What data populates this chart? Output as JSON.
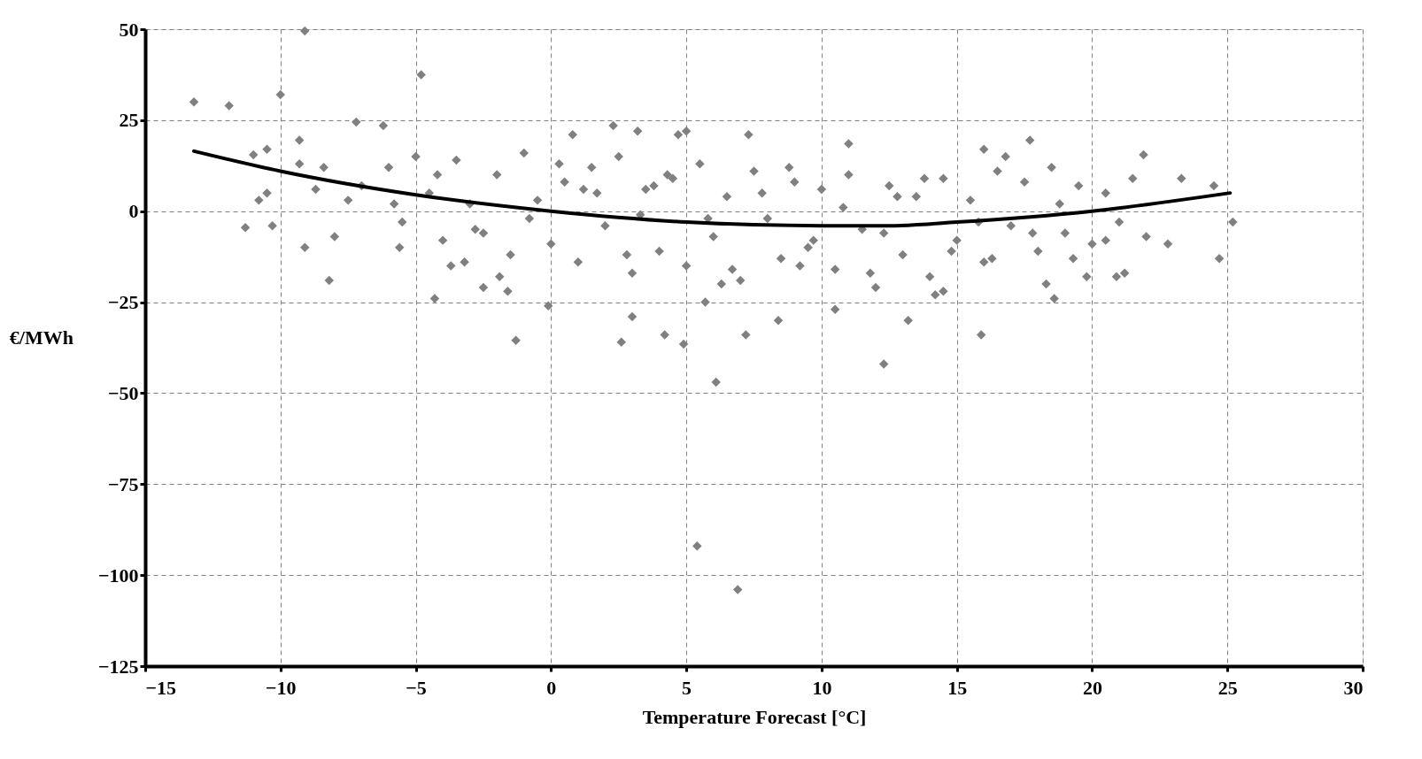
{
  "chart_data": {
    "type": "scatter",
    "xlabel": "Temperature  Forecast [°C]",
    "ylabel": "€/MWh",
    "xlim": [
      -15,
      30
    ],
    "ylim": [
      -125,
      50
    ],
    "xticks": [
      -15,
      -10,
      -5,
      0,
      5,
      10,
      15,
      20,
      25,
      30
    ],
    "yticks": [
      -125,
      -100,
      -75,
      -50,
      -25,
      0,
      25,
      50
    ],
    "grid": true,
    "series": [
      {
        "marker": "diamond",
        "color": "#808080",
        "x": [
          -13.2,
          -11.9,
          -10,
          -9.1,
          -9.3,
          -4.8,
          -7.2,
          -6.2,
          -11.3,
          -10.3,
          -9.1,
          -8.2,
          -10.8,
          -10.5,
          -11,
          -10.5,
          -9.3,
          -8.7,
          -8.4,
          -8,
          -7.5,
          -7,
          -4.3,
          -1.3,
          -0.1,
          0.8,
          2.3,
          3.2,
          4.7,
          5,
          5.4,
          6.9,
          6.1,
          7.3,
          12.3,
          11,
          15.9,
          17.7,
          21.9,
          24.7,
          25.2,
          24.5,
          23.3,
          22.8,
          3,
          4.2,
          4.9,
          7.2,
          8.4,
          10.5,
          13.2,
          5.7,
          2.6,
          -2.5,
          -1.9,
          -3.7,
          -5.6,
          -1.6,
          18.6,
          19.8,
          20.9,
          16,
          14.5,
          -6,
          -5.5,
          -5,
          -4.5,
          -4,
          -3.5,
          -3,
          -2.5,
          -2,
          -1.5,
          -1,
          -0.5,
          0,
          0.5,
          1,
          1.5,
          2,
          2.5,
          3,
          3.5,
          4,
          4.5,
          5,
          5.5,
          6,
          6.5,
          7,
          7.5,
          8,
          8.5,
          9,
          9.5,
          10,
          10.5,
          11,
          11.5,
          12,
          12.5,
          13,
          13.5,
          14,
          14.5,
          15,
          15.5,
          16,
          16.5,
          17,
          17.5,
          18,
          18.5,
          19,
          19.5,
          20,
          20.5,
          21,
          21.5,
          22,
          -5.8,
          -4.2,
          -2.8,
          -0.8,
          0.3,
          1.7,
          2.8,
          3.8,
          4.3,
          5.8,
          6.7,
          7.8,
          8.8,
          9.7,
          10.8,
          11.8,
          12.8,
          13.8,
          14.8,
          15.8,
          16.8,
          17.8,
          18.8,
          19.3,
          1.2,
          3.3,
          6.3,
          9.2,
          12.3,
          14.2,
          16.3,
          18.3,
          20.5,
          21.2,
          -3.2
        ],
        "values": [
          30,
          29,
          32,
          49.5,
          19.5,
          37.5,
          24.5,
          23.5,
          -4.5,
          -4,
          -10,
          -19,
          3,
          5,
          15.5,
          17,
          13,
          6,
          12,
          -7,
          3,
          7,
          -24,
          -35.5,
          -26,
          21,
          23.5,
          22,
          21,
          22,
          -92,
          -104,
          -47,
          21,
          -42,
          18.5,
          -34,
          19.5,
          15.5,
          -13,
          -3,
          7,
          9,
          -9,
          -29,
          -34,
          -36.5,
          -34,
          -30,
          -27,
          -30,
          -25,
          -36,
          -21,
          -18,
          -15,
          -10,
          -22,
          -24,
          -18,
          -18,
          17,
          -22,
          12,
          -3,
          15,
          5,
          -8,
          14,
          2,
          -6,
          10,
          -12,
          16,
          3,
          -9,
          8,
          -14,
          12,
          -4,
          15,
          -17,
          6,
          -11,
          9,
          -15,
          13,
          -7,
          4,
          -19,
          11,
          -2,
          -13,
          8,
          -10,
          6,
          -16,
          10,
          -5,
          -21,
          7,
          -12,
          4,
          -18,
          9,
          -8,
          3,
          -14,
          11,
          -4,
          8,
          -11,
          12,
          -6,
          7,
          -9,
          5,
          -3,
          9,
          -7,
          2,
          10,
          -5,
          -2,
          13,
          5,
          -12,
          7,
          10,
          -2,
          -16,
          5,
          12,
          -8,
          1,
          -17,
          4,
          9,
          -11,
          -3,
          15,
          -6,
          2,
          -13,
          6,
          -1,
          -20,
          -15,
          -6,
          -23,
          -13,
          -20,
          -8,
          -17,
          -14
        ]
      },
      {
        "type": "line",
        "marker": "none",
        "color": "#000000",
        "x": [
          -13.2,
          -10,
          -5,
          0,
          5,
          10,
          12.5,
          15,
          20,
          25.1
        ],
        "values": [
          16.5,
          11,
          4.5,
          0,
          -3,
          -4,
          -4,
          -3,
          0,
          5
        ]
      }
    ]
  }
}
